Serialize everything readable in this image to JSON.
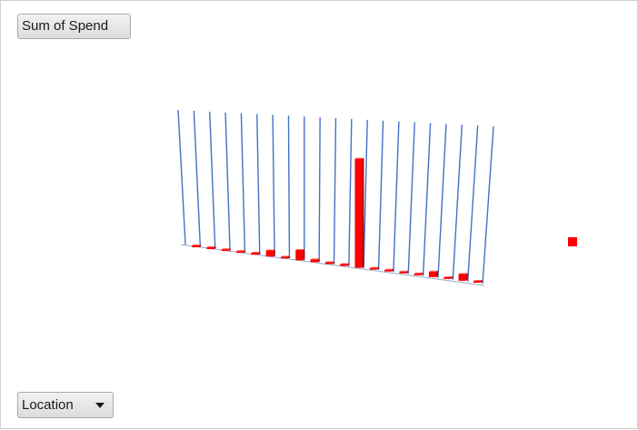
{
  "pivot": {
    "value_field_label": "Sum of Spend",
    "axis_field_label": "Location",
    "axis_field_icon": "dropdown-caret-icon"
  },
  "chart_data": {
    "type": "bar",
    "view": "3d",
    "series_color": "#ff0000",
    "grid_color": "#4472c4",
    "values": [
      2,
      3,
      2,
      2,
      3,
      9,
      2,
      15,
      4,
      2,
      2,
      158,
      2,
      2,
      2,
      2,
      8,
      2,
      10,
      2
    ],
    "legend": "right",
    "grid": true,
    "axis_labels_visible": false
  }
}
